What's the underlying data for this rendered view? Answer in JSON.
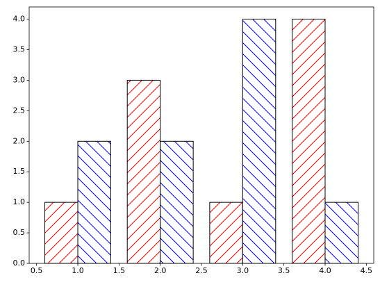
{
  "chart_data": {
    "type": "bar",
    "bar_width": 0.4,
    "edge_color": "#000000",
    "series": [
      {
        "color": "#ff0000",
        "hatch": "/",
        "x": [
          0.8,
          1.8,
          2.8,
          3.8
        ],
        "values": [
          1,
          3,
          1,
          4
        ]
      },
      {
        "color": "#0000ff",
        "hatch": "\\",
        "x": [
          1.2,
          2.2,
          3.2,
          4.2
        ],
        "values": [
          2,
          2,
          4,
          1
        ]
      }
    ],
    "xlim": [
      0.41,
      4.59
    ],
    "ylim": [
      0,
      4.2
    ],
    "xticks": [
      0.5,
      {
        "value": 1,
        "label": "1.0"
      },
      1.5,
      {
        "value": 2,
        "label": "2.0"
      },
      2.5,
      {
        "value": 3,
        "label": "3.0"
      },
      3.5,
      {
        "value": 4,
        "label": "4.0"
      },
      4.5
    ],
    "yticks": [
      {
        "value": 0,
        "label": "0.0"
      },
      0.5,
      {
        "value": 1,
        "label": "1.0"
      },
      1.5,
      {
        "value": 2,
        "label": "2.0"
      },
      2.5,
      {
        "value": 3,
        "label": "3.0"
      },
      3.5,
      {
        "value": 4,
        "label": "4.0"
      }
    ],
    "grid": false
  }
}
